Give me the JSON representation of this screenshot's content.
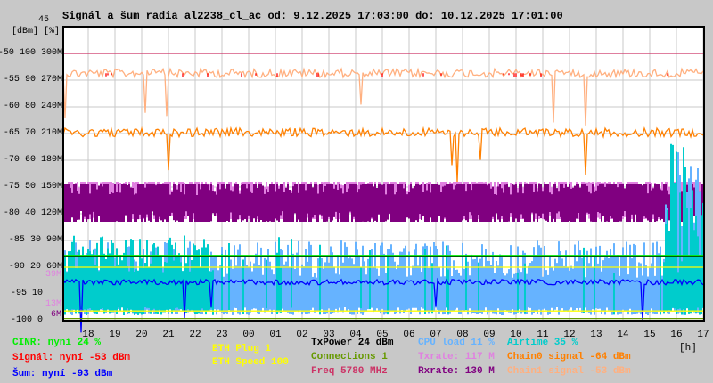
{
  "title": "Signál a šum radia al2238_cl_ac od: 9.12.2025 17:03:00 do: 10.12.2025 17:01:00",
  "y_axis": {
    "top_value": "45",
    "units": "[dBm] [%]",
    "labels": [
      {
        "dbm": "-50",
        "pct": "100",
        "rate": "300M"
      },
      {
        "dbm": "-55",
        "pct": "90",
        "rate": "270M"
      },
      {
        "dbm": "-60",
        "pct": "80",
        "rate": "240M"
      },
      {
        "dbm": "-65",
        "pct": "70",
        "rate": "210M"
      },
      {
        "dbm": "-70",
        "pct": "60",
        "rate": "180M"
      },
      {
        "dbm": "-75",
        "pct": "50",
        "rate": "150M"
      },
      {
        "dbm": "-80",
        "pct": "40",
        "rate": "120M"
      },
      {
        "dbm": "-85",
        "pct": "30",
        "rate": "90M"
      },
      {
        "dbm": "-90",
        "pct": "20",
        "rate": "60M"
      },
      {
        "dbm": "-95",
        "pct": "10",
        "rate": ""
      },
      {
        "dbm": "-100",
        "pct": "0",
        "rate": ""
      }
    ],
    "extra_labels": [
      {
        "text": "39M",
        "color": "#e080e0",
        "dbm": -93.5
      },
      {
        "text": "13M",
        "color": "#e080e0",
        "dbm": -97.8
      },
      {
        "text": "6M",
        "color": "#800080",
        "dbm": -99
      }
    ]
  },
  "x_axis": {
    "labels": [
      "18",
      "19",
      "20",
      "21",
      "22",
      "23",
      "00",
      "01",
      "02",
      "03",
      "04",
      "05",
      "06",
      "07",
      "08",
      "09",
      "10",
      "11",
      "12",
      "13",
      "14",
      "15",
      "16",
      "17"
    ],
    "unit": "[h]"
  },
  "legend": [
    {
      "text": "CINR: nyní 24 %",
      "color": "#00ee00"
    },
    {
      "text": "Signál: nyní -53 dBm",
      "color": "#ff0000"
    },
    {
      "text": "Šum: nyní -93 dBm",
      "color": "#0000ff"
    },
    {
      "text": "ETH Plug 1",
      "color": "#ffff00"
    },
    {
      "text": "ETH Speed 100",
      "color": "#ffff00"
    },
    {
      "text": "TxPower 24 dBm",
      "color": "#000000"
    },
    {
      "text": "Connections 1",
      "color": "#669900"
    },
    {
      "text": "Freq 5780 MHz",
      "color": "#cc3366"
    },
    {
      "text": "CPU load 11 %",
      "color": "#66b3ff"
    },
    {
      "text": "Txrate: 117 M",
      "color": "#e080e0"
    },
    {
      "text": "Rxrate: 130 M",
      "color": "#800080"
    },
    {
      "text": "Airtime 35 %",
      "color": "#00cccc"
    },
    {
      "text": "Chain0 signal -64 dBm",
      "color": "#ff8000"
    },
    {
      "text": "Chain1 signal -53 dBm",
      "color": "#ffb080"
    }
  ],
  "chart_data": {
    "type": "line",
    "title": "Signál a šum radia al2238_cl_ac od: 9.12.2025 17:03:00 do: 10.12.2025 17:01:00",
    "ylabel": "[dBm] [%]",
    "ylim": [
      -100,
      -45
    ],
    "xlim_hours": [
      17.05,
      41.02
    ],
    "grid": true,
    "series": [
      {
        "name": "Freq",
        "color": "#cc3366",
        "level": -50,
        "spread": 0,
        "style": "flat"
      },
      {
        "name": "Chain1 signal",
        "color": "#ffb080",
        "level": -53.7,
        "spread": 0.8,
        "style": "jitter"
      },
      {
        "name": "Signál",
        "color": "#ff0000",
        "level": -53.7,
        "spread": 0.3,
        "style": "sparse"
      },
      {
        "name": "Chain0 signal",
        "color": "#ff8000",
        "level": -64.8,
        "spread": 0.8,
        "style": "jitter"
      },
      {
        "name": "Txrate",
        "color": "#e080e0",
        "level": -77.5,
        "spread": 3.5,
        "style": "band"
      },
      {
        "name": "Rxrate",
        "color": "#800080",
        "level": -78,
        "spread": 3.5,
        "style": "band"
      },
      {
        "name": "CPU load",
        "color": "#66b3ff",
        "level": -92,
        "spread": 7,
        "style": "spikes"
      },
      {
        "name": "Airtime",
        "color": "#00cccc",
        "level": -91,
        "spread": 7,
        "style": "spikes_left"
      },
      {
        "name": "CINR",
        "color": "#00ee00",
        "level": -87.8,
        "spread": 0.2,
        "style": "flat"
      },
      {
        "name": "TxPower",
        "color": "#000000",
        "level": -88,
        "spread": 0,
        "style": "flat"
      },
      {
        "name": "ETH Speed",
        "color": "#ffff00",
        "level": -90,
        "spread": 0,
        "style": "flat"
      },
      {
        "name": "Šum",
        "color": "#0000ff",
        "level": -92.8,
        "spread": 0.5,
        "style": "jitter"
      },
      {
        "name": "ETH Plug",
        "color": "#ffff00",
        "level": -98.2,
        "spread": 0,
        "style": "flat"
      },
      {
        "name": "Connections",
        "color": "#669900",
        "level": -99.6,
        "spread": 0,
        "style": "flat"
      }
    ]
  }
}
